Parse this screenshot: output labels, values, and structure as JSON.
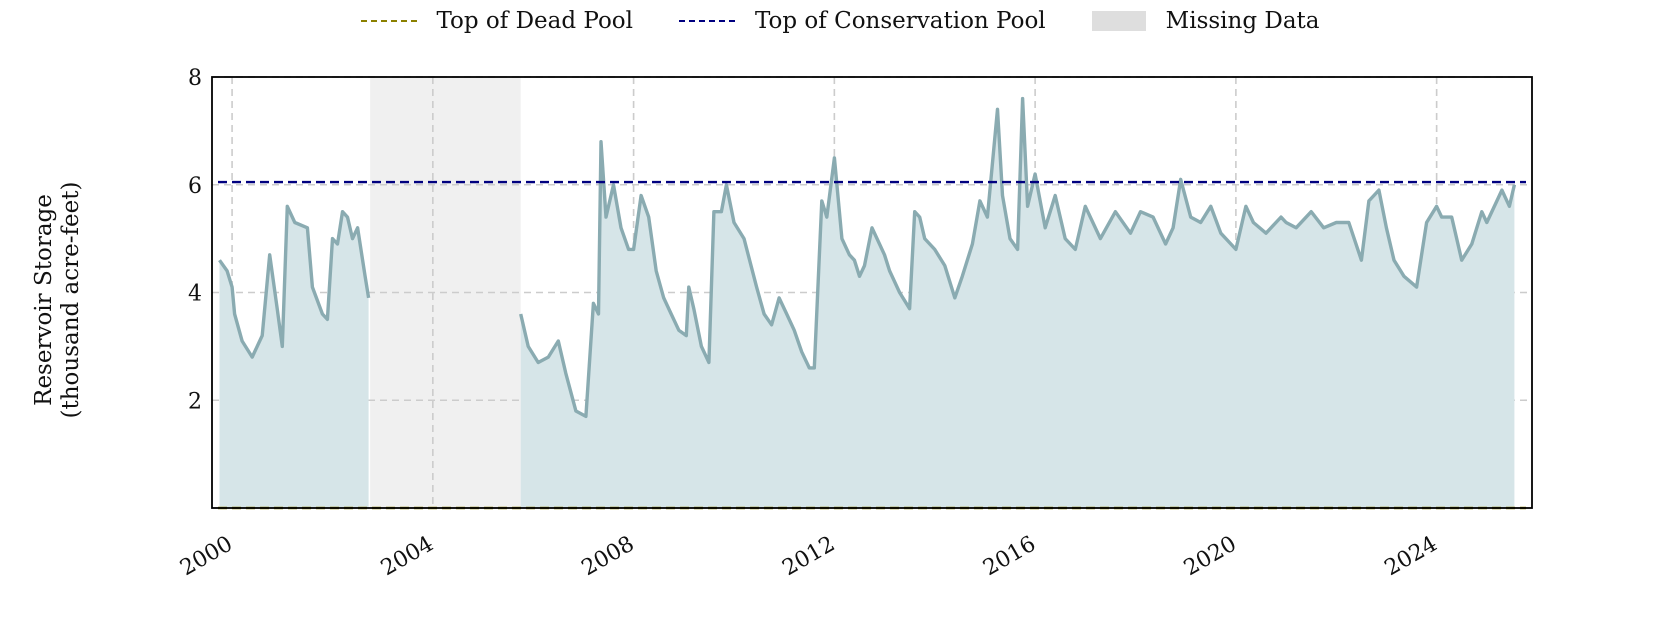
{
  "chart_data": {
    "type": "area",
    "ylabel_lines": [
      "Reservoir Storage",
      "(thousand acre-feet)"
    ],
    "xlim": [
      1999.6,
      2025.9
    ],
    "ylim": [
      0,
      8
    ],
    "yticks": [
      2,
      4,
      6,
      8
    ],
    "xticks": [
      2000,
      2004,
      2008,
      2012,
      2016,
      2020,
      2024
    ],
    "grid": true,
    "legend_position": "top-center",
    "legend": [
      {
        "label": "Top of Dead Pool",
        "kind": "dashed-line",
        "color": "#8b8000"
      },
      {
        "label": "Top of Conservation Pool",
        "kind": "dashed-line",
        "color": "#00007f"
      },
      {
        "label": "Missing Data",
        "kind": "box",
        "color": "#dedede"
      }
    ],
    "reference_lines": [
      {
        "name": "Top of Dead Pool",
        "y": 0.0,
        "color": "#8b8000"
      },
      {
        "name": "Top of Conservation Pool",
        "y": 6.05,
        "color": "#00007f"
      }
    ],
    "missing_ranges": [
      [
        2002.75,
        2005.75
      ]
    ],
    "colors": {
      "line": "#8aabb1",
      "fill": "#d6e5e8",
      "missing": "#f0f0f0",
      "grid": "#cccccc"
    },
    "series": [
      {
        "x": [
          1999.75,
          1999.9,
          2000.0,
          2000.05,
          2000.2,
          2000.4,
          2000.6,
          2000.75,
          2000.9,
          2001.0,
          2001.1,
          2001.25,
          2001.5,
          2001.6,
          2001.8,
          2001.9,
          2002.0,
          2002.1,
          2002.2,
          2002.3,
          2002.4,
          2002.5,
          2002.65,
          2002.72
        ],
        "y": [
          4.6,
          4.4,
          4.1,
          3.6,
          3.1,
          2.8,
          3.2,
          4.7,
          3.7,
          3.0,
          5.6,
          5.3,
          5.2,
          4.1,
          3.6,
          3.5,
          5.0,
          4.9,
          5.5,
          5.4,
          5.0,
          5.2,
          4.3,
          3.9
        ]
      },
      {
        "x": [
          2005.75,
          2005.9,
          2006.1,
          2006.3,
          2006.5,
          2006.65,
          2006.85,
          2007.05,
          2007.2,
          2007.3,
          2007.35,
          2007.45,
          2007.6,
          2007.75,
          2007.9,
          2008.0,
          2008.15,
          2008.3,
          2008.45,
          2008.6,
          2008.75,
          2008.9,
          2009.05,
          2009.1,
          2009.2,
          2009.35,
          2009.5,
          2009.6,
          2009.75,
          2009.85,
          2010.0,
          2010.2,
          2010.45,
          2010.6,
          2010.75,
          2010.9,
          2011.05,
          2011.2,
          2011.35,
          2011.5,
          2011.6,
          2011.75,
          2011.85,
          2012.0,
          2012.15,
          2012.3,
          2012.4,
          2012.5,
          2012.6,
          2012.75,
          2012.9,
          2013.0,
          2013.1,
          2013.3,
          2013.5,
          2013.6,
          2013.7,
          2013.8,
          2014.0,
          2014.2,
          2014.4,
          2014.55,
          2014.75,
          2014.9,
          2015.05,
          2015.25,
          2015.35,
          2015.5,
          2015.65,
          2015.75,
          2015.85,
          2016.0,
          2016.2,
          2016.4,
          2016.6,
          2016.8,
          2017.0,
          2017.3,
          2017.6,
          2017.9,
          2018.1,
          2018.35,
          2018.6,
          2018.75,
          2018.9,
          2019.1,
          2019.3,
          2019.5,
          2019.7,
          2020.0,
          2020.2,
          2020.35,
          2020.6,
          2020.9,
          2021.0,
          2021.2,
          2021.5,
          2021.75,
          2022.0,
          2022.25,
          2022.5,
          2022.65,
          2022.85,
          2023.0,
          2023.15,
          2023.35,
          2023.6,
          2023.8,
          2024.0,
          2024.1,
          2024.3,
          2024.5,
          2024.7,
          2024.9,
          2025.0,
          2025.2,
          2025.3,
          2025.45,
          2025.55
        ],
        "y": [
          3.6,
          3.0,
          2.7,
          2.8,
          3.1,
          2.5,
          1.8,
          1.7,
          3.8,
          3.6,
          6.8,
          5.4,
          6.0,
          5.2,
          4.8,
          4.8,
          5.8,
          5.4,
          4.4,
          3.9,
          3.6,
          3.3,
          3.2,
          4.1,
          3.7,
          3.0,
          2.7,
          5.5,
          5.5,
          6.0,
          5.3,
          5.0,
          4.1,
          3.6,
          3.4,
          3.9,
          3.6,
          3.3,
          2.9,
          2.6,
          2.6,
          5.7,
          5.4,
          6.5,
          5.0,
          4.7,
          4.6,
          4.3,
          4.5,
          5.2,
          4.9,
          4.7,
          4.4,
          4.0,
          3.7,
          5.5,
          5.4,
          5.0,
          4.8,
          4.5,
          3.9,
          4.3,
          4.9,
          5.7,
          5.4,
          7.4,
          5.8,
          5.0,
          4.8,
          7.6,
          5.6,
          6.2,
          5.2,
          5.8,
          5.0,
          4.8,
          5.6,
          5.0,
          5.5,
          5.1,
          5.5,
          5.4,
          4.9,
          5.2,
          6.1,
          5.4,
          5.3,
          5.6,
          5.1,
          4.8,
          5.6,
          5.3,
          5.1,
          5.4,
          5.3,
          5.2,
          5.5,
          5.2,
          5.3,
          5.3,
          4.6,
          5.7,
          5.9,
          5.2,
          4.6,
          4.3,
          4.1,
          5.3,
          5.6,
          5.4,
          5.4,
          4.6,
          4.9,
          5.5,
          5.3,
          5.7,
          5.9,
          5.6,
          6.0
        ]
      }
    ]
  }
}
